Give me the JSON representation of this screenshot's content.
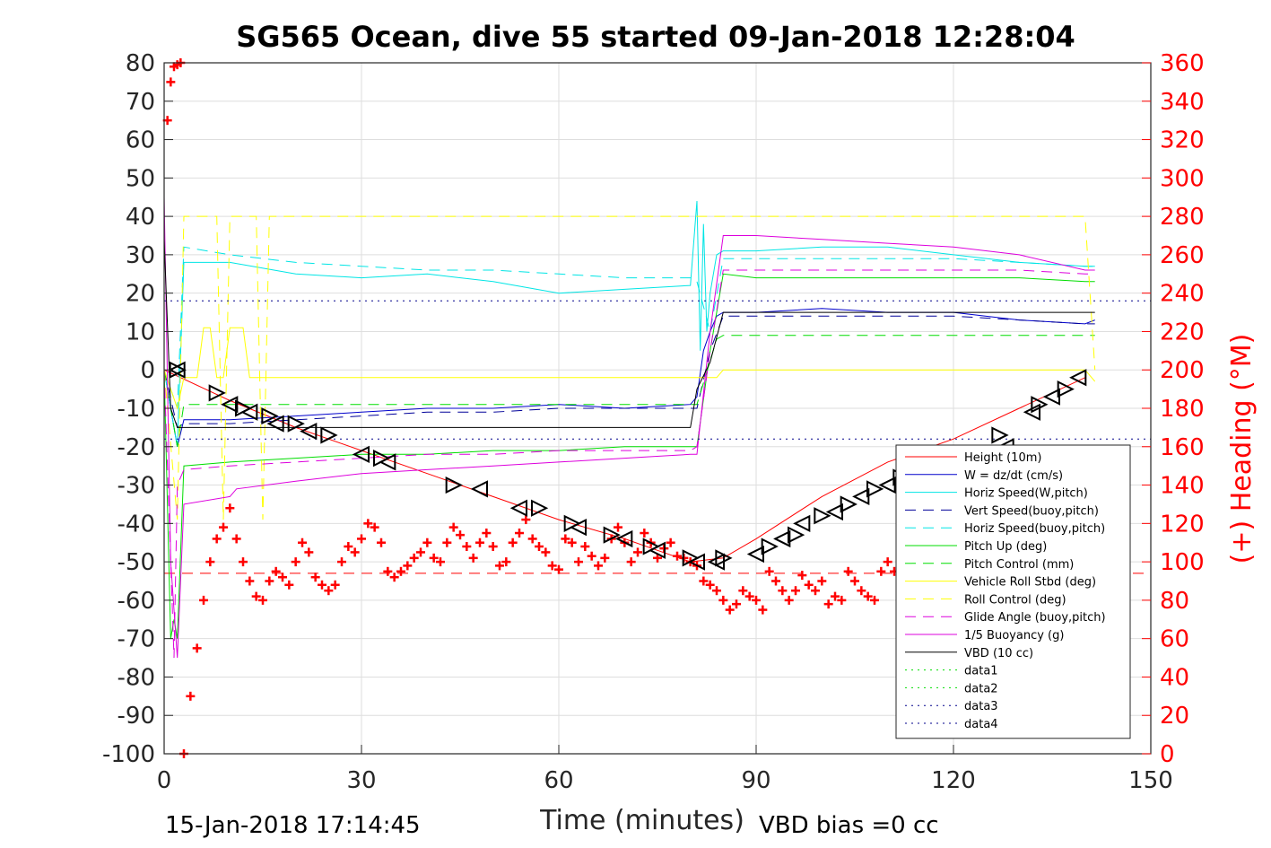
{
  "chart_data": {
    "type": "line",
    "title": "SG565 Ocean, dive 55 started 09-Jan-2018 12:28:04",
    "xlabel": "Time (minutes)",
    "ylabel": "",
    "ylabel_right": "(+) Heading (°M)",
    "xlim": [
      0,
      150
    ],
    "ylim": [
      -100,
      80
    ],
    "ylim_right": [
      0,
      360
    ],
    "x_ticks": [
      0,
      30,
      60,
      90,
      120,
      150
    ],
    "y_ticks": [
      80,
      70,
      60,
      50,
      40,
      30,
      20,
      10,
      0,
      -10,
      -20,
      -30,
      -40,
      -50,
      -60,
      -70,
      -80,
      -90,
      -100
    ],
    "y_ticks_right": [
      360,
      340,
      320,
      300,
      280,
      260,
      240,
      220,
      200,
      180,
      160,
      140,
      120,
      100,
      80,
      60,
      40,
      20,
      0
    ],
    "grid": true,
    "legend_position": "lower-right",
    "footer_left": "15-Jan-2018 17:14:45",
    "footer_right": "VBD bias =0 cc",
    "colors": {
      "red": "#ff0000",
      "blue": "#0000cc",
      "cyan": "#00e5e5",
      "navy": "#000099",
      "green": "#00dd00",
      "yellow": "#ffff00",
      "magenta": "#dd00dd",
      "black": "#000000",
      "darkblue": "#00008b"
    },
    "series": [
      {
        "name": "Height (10m)",
        "color": "#ff0000",
        "dash": "",
        "width": 1,
        "x": [
          0,
          10,
          20,
          30,
          40,
          50,
          60,
          70,
          75,
          80,
          85,
          90,
          100,
          110,
          120,
          130,
          140
        ],
        "y": [
          0,
          -8,
          -15,
          -21,
          -27,
          -33,
          -39,
          -44,
          -47,
          -50,
          -49,
          -44,
          -33,
          -24,
          -18,
          -10,
          -2
        ]
      },
      {
        "name": "W = dz/dt (cm/s)",
        "color": "#0000cc",
        "dash": "",
        "width": 1,
        "x": [
          0,
          1,
          2,
          3,
          10,
          20,
          30,
          40,
          50,
          60,
          70,
          80,
          81,
          82,
          83,
          84,
          85,
          90,
          100,
          110,
          120,
          130,
          140,
          141.5
        ],
        "y": [
          0,
          -10,
          -20,
          -13,
          -13,
          -12,
          -11,
          -10,
          -10,
          -9,
          -10,
          -9,
          -7,
          5,
          10,
          14,
          15,
          15,
          16,
          15,
          15,
          13,
          12,
          13
        ]
      },
      {
        "name": "Horiz Speed(W,pitch)",
        "color": "#00e5e5",
        "dash": "",
        "width": 1,
        "x": [
          0,
          1,
          2,
          3,
          10,
          20,
          30,
          40,
          50,
          60,
          70,
          80,
          81,
          81.5,
          82,
          82.5,
          83,
          84,
          85,
          90,
          100,
          110,
          120,
          130,
          140,
          141.5
        ],
        "y": [
          0,
          -10,
          -20,
          28,
          28,
          25,
          24,
          25,
          23,
          20,
          21,
          22,
          44,
          5,
          38,
          10,
          20,
          30,
          31,
          31,
          32,
          32,
          30,
          28,
          27,
          27
        ]
      },
      {
        "name": "Vert Speed(buoy,pitch)",
        "color": "#000099",
        "dash": "12,8",
        "width": 1,
        "x": [
          0,
          2,
          3,
          10,
          20,
          30,
          40,
          50,
          60,
          70,
          80,
          81,
          83,
          85,
          90,
          100,
          110,
          120,
          130,
          140,
          141.5
        ],
        "y": [
          0,
          -15,
          -14,
          -14,
          -13,
          -12,
          -11,
          -11,
          -10,
          -10,
          -10,
          -10,
          5,
          14,
          14,
          14,
          14,
          14,
          13,
          12,
          12
        ]
      },
      {
        "name": "Horiz Speed(buoy,pitch)",
        "color": "#00e5e5",
        "dash": "12,8",
        "width": 1,
        "x": [
          0,
          2,
          3,
          10,
          20,
          30,
          40,
          50,
          60,
          70,
          80,
          81,
          83,
          85,
          90,
          100,
          110,
          120,
          130,
          140,
          141.5
        ],
        "y": [
          0,
          -10,
          32,
          30,
          28,
          27,
          26,
          26,
          25,
          24,
          24,
          23,
          10,
          29,
          29,
          29,
          29,
          29,
          28,
          27,
          27
        ]
      },
      {
        "name": "Pitch Up (deg)",
        "color": "#00dd00",
        "dash": "",
        "width": 1,
        "x": [
          0,
          1,
          1.5,
          2,
          3,
          10,
          20,
          30,
          40,
          50,
          60,
          70,
          80,
          81,
          83,
          85,
          90,
          100,
          110,
          120,
          130,
          140,
          141.5
        ],
        "y": [
          0,
          -70,
          -65,
          -70,
          -25,
          -24,
          -23,
          -22,
          -22,
          -21,
          -21,
          -20,
          -20,
          -20,
          5,
          25,
          24,
          24,
          24,
          24,
          24,
          23,
          23
        ]
      },
      {
        "name": "Pitch Control (mm)",
        "color": "#00dd00",
        "dash": "12,8",
        "width": 1,
        "x": [
          0,
          2,
          3,
          80,
          81,
          84,
          85,
          141.5
        ],
        "y": [
          0,
          -20,
          -9,
          -9,
          -9,
          8,
          9,
          9
        ]
      },
      {
        "name": "Vehicle Roll Stbd (deg)",
        "color": "#ffff00",
        "dash": "",
        "width": 1,
        "x": [
          0,
          2,
          3,
          5,
          6,
          7,
          8,
          9,
          10,
          12,
          13,
          14,
          15,
          16,
          20,
          25,
          30,
          35,
          40,
          45,
          50,
          55,
          60,
          65,
          70,
          75,
          80,
          82,
          84,
          85,
          90,
          95,
          100,
          105,
          110,
          115,
          120,
          125,
          130,
          135,
          140,
          141.5
        ],
        "y": [
          0,
          -10,
          -2,
          -2,
          11,
          11,
          -2,
          -2,
          11,
          11,
          -2,
          -2,
          -2,
          -2,
          -2,
          -2,
          -2,
          -2,
          -2,
          -2,
          -2,
          -2,
          -2,
          -2,
          -2,
          -2,
          -2,
          -2,
          -2,
          0,
          0,
          0,
          0,
          0,
          0,
          0,
          0,
          0,
          0,
          0,
          0,
          -3
        ]
      },
      {
        "name": "Roll Control (deg)",
        "color": "#ffff00",
        "dash": "12,8",
        "width": 1,
        "x": [
          0,
          2,
          3,
          8,
          9,
          10,
          14,
          15,
          16,
          20,
          25,
          30,
          35,
          40,
          45,
          50,
          55,
          60,
          65,
          70,
          75,
          80,
          85,
          90,
          95,
          100,
          105,
          110,
          115,
          120,
          125,
          130,
          135,
          140,
          141.5
        ],
        "y": [
          0,
          -39,
          40,
          40,
          -39,
          40,
          40,
          -39,
          40,
          40,
          40,
          40,
          40,
          40,
          40,
          40,
          40,
          40,
          40,
          40,
          40,
          40,
          40,
          40,
          40,
          40,
          40,
          40,
          40,
          40,
          40,
          40,
          40,
          40,
          0
        ]
      },
      {
        "name": "Glide Angle (buoy,pitch)",
        "color": "#dd00dd",
        "dash": "12,8",
        "width": 1,
        "x": [
          0,
          1.5,
          2,
          3,
          10,
          20,
          30,
          40,
          50,
          60,
          70,
          80,
          81,
          83,
          85,
          90,
          100,
          110,
          120,
          130,
          140,
          141.5
        ],
        "y": [
          0,
          -75,
          -30,
          -26,
          -25,
          -24,
          -23,
          -22,
          -22,
          -21,
          -21,
          -21,
          -20,
          5,
          26,
          26,
          26,
          26,
          26,
          26,
          25,
          25
        ]
      },
      {
        "name": "1/5 Buoyancy (g)",
        "color": "#dd00dd",
        "dash": "",
        "width": 1,
        "x": [
          0,
          1,
          2,
          3,
          10,
          11,
          20,
          30,
          40,
          50,
          60,
          70,
          80,
          81,
          83,
          85,
          90,
          100,
          110,
          120,
          130,
          140,
          141.5
        ],
        "y": [
          45,
          -50,
          -75,
          -35,
          -33,
          -31,
          -29,
          -27,
          -26,
          -25,
          -24,
          -23,
          -22,
          -22,
          10,
          35,
          35,
          34,
          33,
          32,
          30,
          26,
          26
        ]
      },
      {
        "name": "VBD (10 cc)",
        "color": "#000000",
        "dash": "",
        "width": 1,
        "x": [
          0,
          1,
          2,
          3,
          10,
          20,
          30,
          40,
          50,
          60,
          70,
          80,
          81,
          83,
          85,
          90,
          100,
          110,
          120,
          130,
          140,
          141.5
        ],
        "y": [
          34,
          -10,
          -15,
          -15,
          -15,
          -15,
          -15,
          -15,
          -15,
          -15,
          -15,
          -15,
          -5,
          2,
          15,
          15,
          15,
          15,
          15,
          15,
          15,
          15
        ]
      },
      {
        "name": "data1",
        "color": "#00dd00",
        "dash": "2,5",
        "width": 1,
        "x": [],
        "y": []
      },
      {
        "name": "data2",
        "color": "#00dd00",
        "dash": "2,5",
        "width": 1,
        "x": [],
        "y": []
      },
      {
        "name": "data3",
        "color": "#00008b",
        "dash": "2,5",
        "width": 1,
        "x": [
          0,
          150
        ],
        "y": [
          18,
          18
        ]
      },
      {
        "name": "data4",
        "color": "#00008b",
        "dash": "2,5",
        "width": 1,
        "x": [
          0,
          150
        ],
        "y": [
          -18,
          -18
        ]
      }
    ],
    "extra_lines": [
      {
        "color": "#ff0000",
        "dash": "12,8",
        "x": [
          0,
          150
        ],
        "y": [
          -53,
          -53
        ]
      }
    ],
    "heading": {
      "axis": "right",
      "color": "#ff0000",
      "x": [
        0.5,
        1,
        1.5,
        2,
        2.5,
        3,
        4,
        5,
        6,
        7,
        8,
        9,
        10,
        11,
        12,
        13,
        14,
        15,
        16,
        17,
        18,
        19,
        20,
        21,
        22,
        23,
        24,
        25,
        26,
        27,
        28,
        29,
        30,
        31,
        32,
        33,
        34,
        35,
        36,
        37,
        38,
        39,
        40,
        41,
        42,
        43,
        44,
        45,
        46,
        47,
        48,
        49,
        50,
        51,
        52,
        53,
        54,
        55,
        56,
        57,
        58,
        59,
        60,
        61,
        62,
        63,
        64,
        65,
        66,
        67,
        68,
        69,
        70,
        71,
        72,
        73,
        74,
        75,
        76,
        77,
        78,
        79,
        80,
        81,
        82,
        83,
        84,
        85,
        86,
        87,
        88,
        89,
        90,
        91,
        92,
        93,
        94,
        95,
        96,
        97,
        98,
        99,
        100,
        101,
        102,
        103,
        104,
        105,
        106,
        107,
        108,
        109,
        110,
        111,
        112
      ],
      "y": [
        330,
        350,
        358,
        359,
        360,
        0,
        30,
        55,
        80,
        100,
        112,
        118,
        128,
        112,
        100,
        90,
        82,
        80,
        90,
        95,
        92,
        88,
        100,
        110,
        105,
        92,
        88,
        85,
        88,
        100,
        108,
        105,
        112,
        120,
        118,
        110,
        95,
        92,
        95,
        98,
        102,
        105,
        110,
        102,
        100,
        110,
        118,
        114,
        108,
        102,
        110,
        115,
        108,
        98,
        100,
        110,
        115,
        122,
        112,
        108,
        105,
        98,
        96,
        112,
        110,
        100,
        108,
        103,
        98,
        102,
        112,
        118,
        110,
        100,
        105,
        115,
        110,
        102,
        107,
        110,
        103,
        102,
        100,
        98,
        90,
        88,
        85,
        80,
        75,
        78,
        85,
        82,
        80,
        75,
        95,
        90,
        85,
        80,
        85,
        93,
        88,
        85,
        90,
        78,
        82,
        80,
        95,
        90,
        85,
        82,
        80,
        95,
        100,
        95,
        85
      ]
    },
    "markers": {
      "color": "#000000",
      "left_points": {
        "x": [
          2,
          10,
          13,
          17,
          22,
          30,
          34,
          48,
          54,
          63,
          70,
          75,
          81,
          84,
          90,
          94,
          97,
          102,
          106,
          110,
          115,
          118,
          124,
          128,
          132,
          135,
          139
        ],
        "y": [
          0,
          -9,
          -11,
          -14,
          -16,
          -22,
          -24,
          -31,
          -36,
          -41,
          -44,
          -47,
          -50,
          -50,
          -48,
          -44,
          -40,
          -37,
          -33,
          -30,
          -27,
          -26,
          -22,
          -20,
          -11,
          -7,
          -2
        ]
      },
      "right_points": {
        "x": [
          2,
          8,
          12,
          16,
          20,
          25,
          33,
          44,
          57,
          62,
          68,
          74,
          80,
          85,
          92,
          96,
          100,
          104,
          108,
          112,
          117,
          121,
          127,
          133,
          137
        ],
        "y": [
          0,
          -6,
          -10,
          -12,
          -14,
          -17,
          -23,
          -30,
          -36,
          -40,
          -43,
          -46,
          -49,
          -49,
          -46,
          -43,
          -38,
          -35,
          -31,
          -28,
          -25,
          -23,
          -17,
          -9,
          -5
        ]
      }
    }
  }
}
